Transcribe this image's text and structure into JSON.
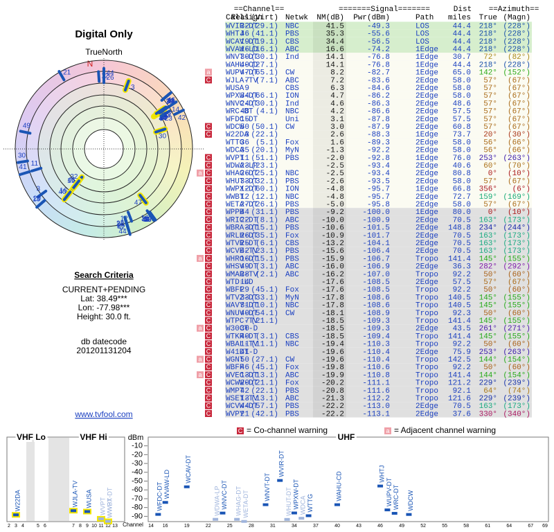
{
  "polar": {
    "title": "Digital Only",
    "north_label": "TrueNorth",
    "n": "N"
  },
  "criteria": {
    "title": "Search Criteria",
    "lines": [
      "CURRENT+PENDING",
      "Lat: 38.49***",
      "Lon: -77.98***",
      "Height: 30.0 ft."
    ],
    "datecode_label": "db datecode",
    "datecode": "201201131204",
    "link": "www.tvfool.com"
  },
  "flag_styles": {
    "C": "#c8283c",
    "a": "#f0a0a8"
  },
  "table": {
    "group_header": [
      "==Channel==",
      "=======Signal=======",
      "Dist",
      "==Azimuth=="
    ],
    "columns": [
      "Callsign",
      "Real",
      "(Virt)",
      "Netwk",
      "NM(dB)",
      "Pwr(dBm)",
      "Path",
      "miles",
      "True",
      "(Magn)"
    ],
    "rows": [
      {
        "cells": [
          "WVIR-DT",
          "32",
          "(29.1)",
          "NBC",
          "41.5",
          "-49.3",
          "LOS",
          "44.4",
          "218°",
          "(228°)"
        ]
      },
      {
        "cells": [
          "WHTJ",
          "46",
          "(41.1)",
          "PBS",
          "35.3",
          "-55.6",
          "LOS",
          "44.4",
          "218°",
          "(228°)"
        ]
      },
      {
        "cells": [
          "WCAV-DT",
          "19",
          "(19.1)",
          "CBS",
          "34.4",
          "-56.5",
          "LOS",
          "44.4",
          "218°",
          "(228°)"
        ]
      },
      {
        "cells": [
          "WVAW-LD",
          "16",
          "(16.1)",
          "ABC",
          "16.6",
          "-74.2",
          "1Edge",
          "44.4",
          "218°",
          "(228°)"
        ]
      },
      {
        "cells": [
          "WNVT-DT",
          "30",
          "(30.1)",
          "Ind",
          "14.1",
          "-76.8",
          "1Edge",
          "30.7",
          "72°",
          "(82°)"
        ]
      },
      {
        "cells": [
          "WAHU-CD",
          "40",
          "(27.1)",
          null,
          "14.1",
          "-76.8",
          "1Edge",
          "44.4",
          "218°",
          "(228°)"
        ]
      },
      {
        "cells": [
          "WUPV-DT",
          "47",
          "(65.1)",
          "CW",
          "8.2",
          "-82.7",
          "1Edge",
          "65.0",
          "142°",
          "(152°)"
        ],
        "flags": [
          "a"
        ]
      },
      {
        "cells": [
          "WJLA-TV",
          "7",
          "(7.1)",
          "ABC",
          "7.2",
          "-83.6",
          "2Edge",
          "58.0",
          "57°",
          "(67°)"
        ],
        "flags": [
          "C"
        ]
      },
      {
        "cells": [
          "WUSA",
          "9",
          null,
          "CBS",
          "6.3",
          "-84.6",
          "2Edge",
          "58.0",
          "57°",
          "(67°)"
        ]
      },
      {
        "cells": [
          "WPXW-DT",
          "34",
          "(66.1)",
          "ION",
          "4.7",
          "-86.2",
          "2Edge",
          "58.0",
          "57°",
          "(67°)"
        ]
      },
      {
        "cells": [
          "WNVC-DT",
          "24",
          "(30.1)",
          "Ind",
          "4.6",
          "-86.3",
          "2Edge",
          "48.6",
          "57°",
          "(67°)"
        ]
      },
      {
        "cells": [
          "WRC-DT",
          "48",
          "(4.1)",
          "NBC",
          "4.2",
          "-86.6",
          "2Edge",
          "57.5",
          "57°",
          "(67°)"
        ]
      },
      {
        "cells": [
          "WFDC-DT",
          "15",
          null,
          "Uni",
          "3.1",
          "-87.8",
          "2Edge",
          "57.5",
          "57°",
          "(67°)"
        ]
      },
      {
        "cells": [
          "WDCW",
          "50",
          "(50.1)",
          "CW",
          "3.0",
          "-87.9",
          "2Edge",
          "60.8",
          "57°",
          "(67°)"
        ],
        "flags": [
          "C"
        ]
      },
      {
        "cells": [
          "W22DA",
          "3",
          "(22.1)",
          null,
          "2.6",
          "-88.3",
          "1Edge",
          "73.7",
          "20°",
          "(30°)"
        ],
        "flags": [
          "C"
        ]
      },
      {
        "cells": [
          "WTTG",
          "36",
          "(5.1)",
          "Fox",
          "1.6",
          "-89.3",
          "2Edge",
          "58.0",
          "56°",
          "(66°)"
        ]
      },
      {
        "cells": [
          "WDCA",
          "35",
          "(20.1)",
          "MyN",
          "-1.3",
          "-92.2",
          "2Edge",
          "58.0",
          "56°",
          "(66°)"
        ]
      },
      {
        "cells": [
          "WVPT",
          "11",
          "(51.1)",
          "PBS",
          "-2.0",
          "-92.8",
          "1Edge",
          "76.0",
          "253°",
          "(263°)"
        ],
        "flags": [
          "C"
        ]
      },
      {
        "cells": [
          "WDWA-LP",
          "23",
          "(23.1)",
          null,
          "-2.5",
          "-93.4",
          "2Edge",
          "40.6",
          "60°",
          "(70°)"
        ],
        "flags": [
          "C"
        ]
      },
      {
        "cells": [
          "WHAG-DT",
          "26",
          "(25.1)",
          "NBC",
          "-2.5",
          "-93.4",
          "2Edge",
          "80.8",
          "0°",
          "(10°)"
        ],
        "flags": [
          "a",
          "C"
        ]
      },
      {
        "cells": [
          "WHUT-DT",
          "33",
          "(32.1)",
          "PBS",
          "-2.6",
          "-93.5",
          "2Edge",
          "58.0",
          "57°",
          "(67°)"
        ],
        "flags": [
          "C"
        ]
      },
      {
        "cells": [
          "WWPX-DT",
          "12",
          "(60.1)",
          "ION",
          "-4.8",
          "-95.7",
          "1Edge",
          "66.8",
          "356°",
          "(6°)"
        ],
        "flags": [
          "C"
        ]
      },
      {
        "cells": [
          "WWBT",
          "12",
          "(12.1)",
          "NBC",
          "-4.8",
          "-95.7",
          "2Edge",
          "72.7",
          "159°",
          "(169°)"
        ],
        "flags": [
          "C"
        ]
      },
      {
        "cells": [
          "WETA-DT",
          "27",
          "(26.1)",
          "PBS",
          "-5.0",
          "-95.8",
          "2Edge",
          "58.0",
          "57°",
          "(67°)"
        ],
        "flags": [
          "C"
        ]
      },
      {
        "cells": [
          "WPPB",
          "44",
          "(31.1)",
          "PBS",
          "-9.2",
          "-100.0",
          "1Edge",
          "80.0",
          "0°",
          "(10°)"
        ],
        "flags": [
          "C"
        ]
      },
      {
        "cells": [
          "WRIC-DT",
          "22",
          "(8.1)",
          "ABC",
          "-10.0",
          "-100.9",
          "2Edge",
          "70.5",
          "163°",
          "(173°)"
        ],
        "flags": [
          "C"
        ]
      },
      {
        "cells": [
          "WBRA-DT",
          "3",
          "(15.1)",
          "PBS",
          "-10.6",
          "-101.5",
          "2Edge",
          "148.8",
          "234°",
          "(244°)"
        ],
        "flags": [
          "C"
        ]
      },
      {
        "cells": [
          "WRLH-DT",
          "26",
          "(35.1)",
          "Fox",
          "-10.9",
          "-101.7",
          "2Edge",
          "70.5",
          "163°",
          "(173°)"
        ],
        "flags": [
          "C"
        ]
      },
      {
        "cells": [
          "WTVR-DT",
          "25",
          "(6.1)",
          "CBS",
          "-13.2",
          "-104.1",
          "2Edge",
          "70.5",
          "163°",
          "(173°)"
        ],
        "flags": [
          "C"
        ]
      },
      {
        "cells": [
          "WCVE-TV",
          "42",
          "(23.1)",
          "PBS",
          "-15.6",
          "-106.4",
          "2Edge",
          "70.5",
          "163°",
          "(173°)"
        ],
        "flags": [
          "C"
        ]
      },
      {
        "cells": [
          "WHRO-DT",
          "16",
          "(15.1)",
          "PBS",
          "-15.9",
          "-106.7",
          "Tropo",
          "141.4",
          "145°",
          "(155°)"
        ],
        "flags": [
          "a",
          "C"
        ]
      },
      {
        "cells": [
          "WHSV-DT",
          "49",
          "(3.1)",
          "ABC",
          "-16.0",
          "-106.9",
          "2Edge",
          "36.3",
          "282°",
          "(292°)"
        ],
        "flags": [
          "C"
        ]
      },
      {
        "cells": [
          "WMAR-TV",
          "38",
          "(2.1)",
          "ABC",
          "-16.2",
          "-107.0",
          "Tropo",
          "92.2",
          "50°",
          "(60°)"
        ],
        "flags": [
          "C"
        ]
      },
      {
        "cells": [
          "WTD-LD",
          "14",
          null,
          null,
          "-17.6",
          "-108.5",
          "2Edge",
          "57.5",
          "57°",
          "(67°)"
        ],
        "flags": [
          "C"
        ]
      },
      {
        "cells": [
          "WBFF",
          "29",
          "(45.1)",
          "Fox",
          "-17.6",
          "-108.5",
          "Tropo",
          "92.2",
          "50°",
          "(60°)"
        ],
        "flags": [
          "C"
        ]
      },
      {
        "cells": [
          "WTVZ-DT",
          "33",
          "(33.1)",
          "MyN",
          "-17.8",
          "-108.6",
          "Tropo",
          "140.5",
          "145°",
          "(155°)"
        ],
        "flags": [
          "C"
        ]
      },
      {
        "cells": [
          "WAVY-DT",
          "31",
          "(10.1)",
          "NBC",
          "-17.8",
          "-108.6",
          "Tropo",
          "140.5",
          "145°",
          "(155°)"
        ],
        "flags": [
          "C"
        ]
      },
      {
        "cells": [
          "WNUV-DT",
          "40",
          "(54.1)",
          "CW",
          "-18.1",
          "-108.9",
          "Tropo",
          "92.3",
          "50°",
          "(60°)"
        ],
        "flags": [
          "C"
        ]
      },
      {
        "cells": [
          "WTPC-TV",
          "7",
          "(21.1)",
          null,
          "-18.5",
          "-109.3",
          "Tropo",
          "141.4",
          "145°",
          "(155°)"
        ],
        "flags": [
          "C"
        ]
      },
      {
        "cells": [
          "W30CT-D",
          "30",
          null,
          null,
          "-18.5",
          "-109.3",
          "2Edge",
          "43.5",
          "261°",
          "(271°)"
        ],
        "flags": [
          "a",
          "C"
        ]
      },
      {
        "cells": [
          "WTKR-DT",
          "40",
          "(3.1)",
          "CBS",
          "-18.5",
          "-109.4",
          "Tropo",
          "141.4",
          "145°",
          "(155°)"
        ],
        "flags": [
          "C"
        ]
      },
      {
        "cells": [
          "WBAL-TV",
          "11",
          "(11.1)",
          "NBC",
          "-19.4",
          "-110.3",
          "Tropo",
          "92.2",
          "50°",
          "(60°)"
        ],
        "flags": [
          "C"
        ]
      },
      {
        "cells": [
          "W41DT-D",
          "41",
          null,
          null,
          "-19.6",
          "-110.4",
          "2Edge",
          "75.9",
          "253°",
          "(263°)"
        ],
        "flags": [
          "C"
        ]
      },
      {
        "cells": [
          "WGNT",
          "50",
          "(27.1)",
          "CW",
          "-19.6",
          "-110.4",
          "Tropo",
          "142.5",
          "144°",
          "(154°)"
        ],
        "flags": [
          "a",
          "C"
        ]
      },
      {
        "cells": [
          "WBFF",
          "46",
          "(45.1)",
          "Fox",
          "-19.8",
          "-110.6",
          "Tropo",
          "92.2",
          "50°",
          "(60°)"
        ],
        "flags": [
          "C"
        ]
      },
      {
        "cells": [
          "WVEC-DT",
          "13",
          "(13.1)",
          "ABC",
          "-19.9",
          "-110.8",
          "Tropo",
          "141.4",
          "144°",
          "(154°)"
        ],
        "flags": [
          "a",
          "C"
        ]
      },
      {
        "cells": [
          "WCWW-DT",
          "20",
          "(21.1)",
          "Fox",
          "-20.2",
          "-111.1",
          "Tropo",
          "121.2",
          "229°",
          "(239°)"
        ],
        "flags": [
          "C"
        ]
      },
      {
        "cells": [
          "WMPT",
          "42",
          "(22.1)",
          "PBS",
          "-20.8",
          "-111.6",
          "Tropo",
          "92.1",
          "64°",
          "(74°)"
        ],
        "flags": [
          "C"
        ]
      },
      {
        "cells": [
          "WSET-TV",
          "13",
          "(13.1)",
          "ABC",
          "-21.3",
          "-112.2",
          "Tropo",
          "121.6",
          "229°",
          "(239°)"
        ],
        "flags": [
          "C"
        ]
      },
      {
        "cells": [
          "WCVW-DT",
          "44",
          "(57.1)",
          "PBS",
          "-22.2",
          "-113.0",
          "2Edge",
          "70.5",
          "163°",
          "(173°)"
        ],
        "flags": [
          "C"
        ]
      },
      {
        "cells": [
          "WVPY",
          "21",
          "(42.1)",
          "PBS",
          "-22.2",
          "-113.1",
          "2Edge",
          "37.6",
          "330°",
          "(340°)"
        ],
        "flags": [
          "C"
        ]
      }
    ]
  },
  "legend": [
    {
      "icon": "C",
      "text": "= Co-channel warning"
    },
    {
      "icon": "a",
      "text": "= Adjacent channel warning"
    }
  ],
  "spectrum": {
    "ylabel": "dBm",
    "xlabel": "Channel",
    "ylim": [
      -96,
      -4
    ],
    "yticks": [
      -10,
      -20,
      -30,
      -40,
      -50,
      -60,
      -70,
      -80,
      -90
    ],
    "vhf_lo_title": "VHF Lo",
    "vhf_hi_title": "VHF Hi",
    "uhf_title": "UHF",
    "vhf_channels": [
      2,
      3,
      4,
      5,
      6,
      7,
      8,
      9,
      10,
      11,
      12,
      13
    ],
    "uhf_xlim": [
      14,
      69
    ],
    "uhf_channels": [
      14,
      16,
      19,
      22,
      25,
      28,
      31,
      34,
      37,
      40,
      43,
      46,
      49,
      52,
      55,
      58,
      61,
      64,
      67,
      69
    ]
  }
}
